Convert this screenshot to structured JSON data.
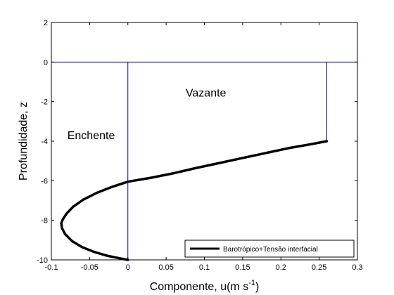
{
  "chart_data": {
    "type": "line",
    "xlabel": "Componente, u(m s",
    "xlabel_sup": "-1",
    "xlabel_close": ")",
    "ylabel": "Profundidade, z",
    "xlim": [
      -0.1,
      0.3
    ],
    "ylim": [
      -10,
      2
    ],
    "xticks": [
      "-0.1",
      "-0.05",
      "0",
      "0.05",
      "0.1",
      "0.15",
      "0.2",
      "0.25",
      "0.3"
    ],
    "yticks": [
      "2",
      "0",
      "-2",
      "-4",
      "-6",
      "-8",
      "-10"
    ],
    "grid": false,
    "legend_position": "bottom-right",
    "annotations": [
      {
        "text": "Vazante",
        "x": 0.102,
        "y": -1.75
      },
      {
        "text": "Enchente",
        "x": -0.048,
        "y": -3.9
      }
    ],
    "reference_lines": [
      {
        "orientation": "horizontal",
        "value": 0,
        "color": "#0000cc"
      },
      {
        "orientation": "vertical",
        "value": 0,
        "y_from": -10,
        "y_to": 0,
        "color": "#0000cc"
      },
      {
        "orientation": "vertical",
        "value": 0.26,
        "y_from": -4,
        "y_to": 0,
        "color": "#0000cc"
      }
    ],
    "series": [
      {
        "name": "Barotrópico+Tensão interfacial",
        "color": "#000000",
        "x": [
          0.26,
          0.24,
          0.21,
          0.18,
          0.15,
          0.12,
          0.09,
          0.06,
          0.03,
          0.0,
          -0.02,
          -0.04,
          -0.058,
          -0.071,
          -0.08,
          -0.085,
          -0.087,
          -0.086,
          -0.082,
          -0.073,
          -0.06,
          -0.044,
          -0.026,
          -0.011,
          0.0
        ],
        "y": [
          -4.0,
          -4.15,
          -4.35,
          -4.6,
          -4.85,
          -5.1,
          -5.35,
          -5.62,
          -5.85,
          -6.05,
          -6.3,
          -6.6,
          -6.95,
          -7.3,
          -7.65,
          -7.95,
          -8.15,
          -8.4,
          -8.7,
          -9.05,
          -9.35,
          -9.6,
          -9.8,
          -9.92,
          -10.0
        ]
      }
    ]
  }
}
